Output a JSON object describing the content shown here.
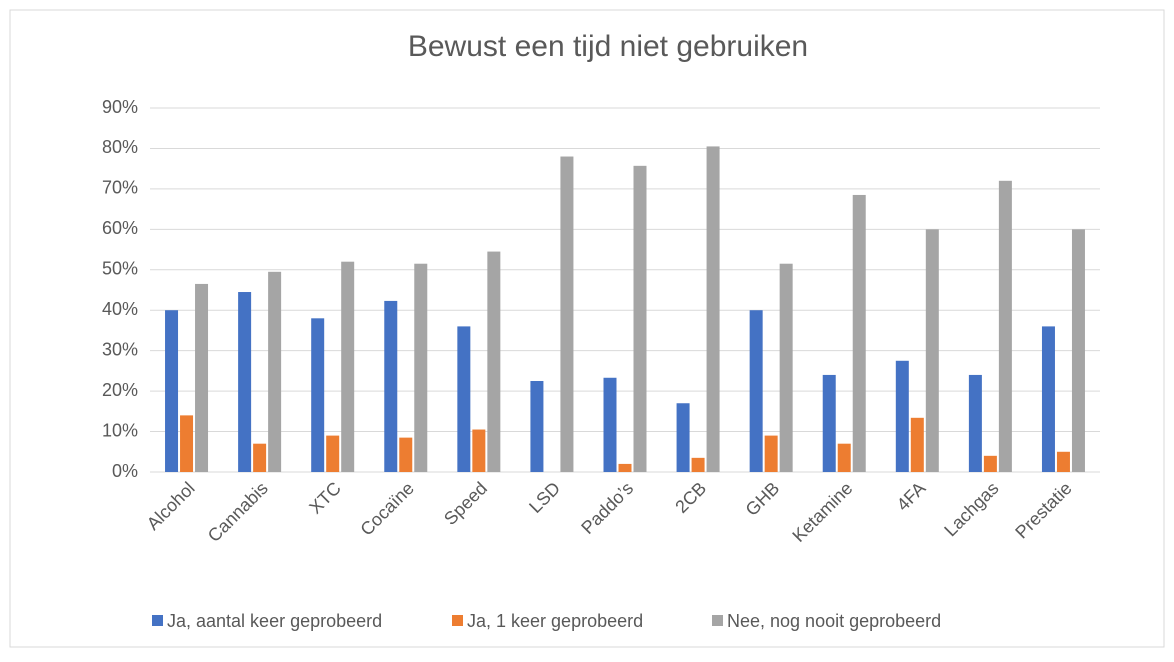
{
  "chart_data": {
    "type": "bar",
    "title": "Bewust een tijd niet gebruiken",
    "categories": [
      "Alcohol",
      "Cannabis",
      "XTC",
      "Cocaïne",
      "Speed",
      "LSD",
      "Paddo’s",
      "2CB",
      "GHB",
      "Ketamine",
      "4FA",
      "Lachgas",
      "Prestatie"
    ],
    "series": [
      {
        "name": "Ja, aantal keer geprobeerd",
        "color": "#4472c4",
        "values": [
          40,
          44.5,
          38,
          42.3,
          36,
          22.5,
          23.3,
          17,
          40,
          24,
          27.5,
          24,
          36
        ]
      },
      {
        "name": "Ja, 1 keer geprobeerd",
        "color": "#ed7d31",
        "values": [
          14,
          7,
          9,
          8.5,
          10.5,
          0,
          2,
          3.5,
          9,
          7,
          13.4,
          4,
          5
        ]
      },
      {
        "name": "Nee, nog nooit geprobeerd",
        "color": "#a5a5a5",
        "values": [
          46.5,
          49.5,
          52,
          51.5,
          54.5,
          78,
          75.7,
          80.5,
          51.5,
          68.5,
          60,
          72,
          60
        ]
      }
    ],
    "ylim": [
      0,
      90
    ],
    "yticks": [
      {
        "value": 0,
        "label": "0%"
      },
      {
        "value": 10,
        "label": "10%"
      },
      {
        "value": 20,
        "label": "20%"
      },
      {
        "value": 30,
        "label": "30%"
      },
      {
        "value": 40,
        "label": "40%"
      },
      {
        "value": 50,
        "label": "50%"
      },
      {
        "value": 60,
        "label": "60%"
      },
      {
        "value": 70,
        "label": "70%"
      },
      {
        "value": 80,
        "label": "80%"
      },
      {
        "value": 90,
        "label": "90%"
      }
    ],
    "grid": true,
    "legend": "bottom"
  }
}
